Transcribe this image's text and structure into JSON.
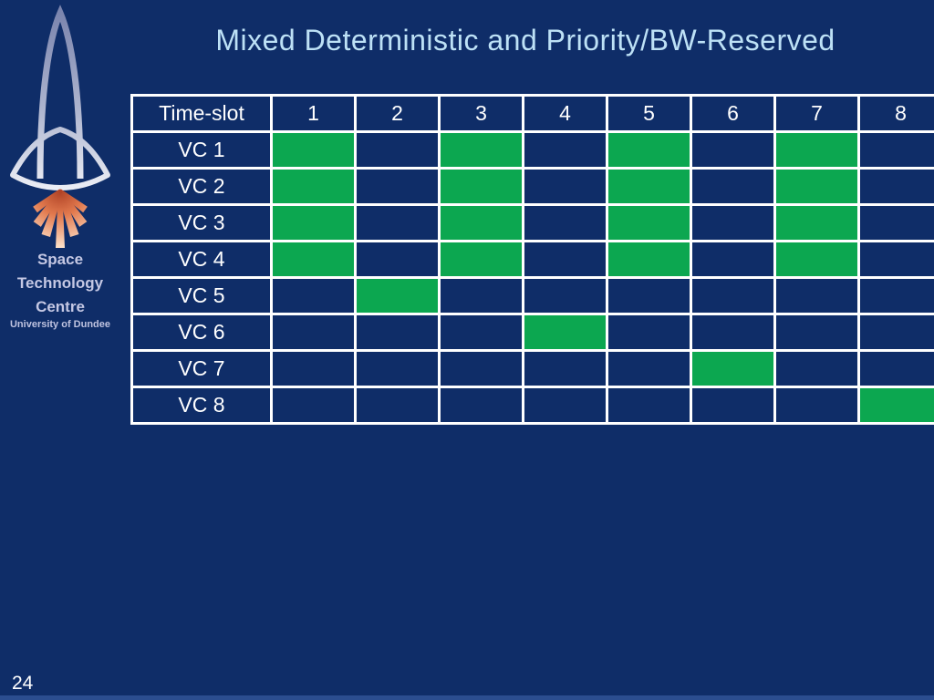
{
  "slide": {
    "title": "Mixed Deterministic and Priority/BW-Reserved",
    "page_number": "24"
  },
  "logo": {
    "icon": "rocket-icon",
    "org_lines": [
      "Space",
      "Technology",
      "Centre"
    ],
    "sub_line": "University of Dundee"
  },
  "table": {
    "header": [
      "Time-slot",
      "1",
      "2",
      "3",
      "4",
      "5",
      "6",
      "7",
      "8"
    ],
    "rows": [
      {
        "label": "VC 1",
        "green_slots": [
          1,
          3,
          5,
          7
        ]
      },
      {
        "label": "VC 2",
        "green_slots": [
          1,
          3,
          5,
          7
        ]
      },
      {
        "label": "VC 3",
        "green_slots": [
          1,
          3,
          5,
          7
        ]
      },
      {
        "label": "VC 4",
        "green_slots": [
          1,
          3,
          5,
          7
        ]
      },
      {
        "label": "VC 5",
        "green_slots": [
          2
        ]
      },
      {
        "label": "VC 6",
        "green_slots": [
          4
        ]
      },
      {
        "label": "VC 7",
        "green_slots": [
          6
        ]
      },
      {
        "label": "VC 8",
        "green_slots": [
          8
        ]
      }
    ]
  },
  "colors": {
    "background": "#0F2D68",
    "slot_filled": "#0CA750",
    "title_text": "#BDE1F6",
    "table_border": "#FFFFFF",
    "table_text": "#FFFFFF",
    "bottom_strip": "#2B4D8F",
    "logo_text": "#C5C8E4"
  }
}
